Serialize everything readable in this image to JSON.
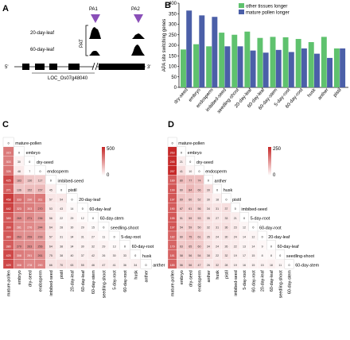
{
  "panels": {
    "a": "A",
    "b": "B",
    "c": "C",
    "d": "D"
  },
  "panel_a": {
    "pa1": "PA1",
    "pa2": "PA2",
    "pat": "PAT",
    "track1": "20-day-leaf",
    "track2": "60-day-leaf",
    "five_prime": "5'",
    "three_prime": "3'",
    "gene": "LOC_Os07g48040",
    "colors": {
      "arrow": "#8a4fb8",
      "track": "#000000"
    }
  },
  "panel_b": {
    "legend_other": "other tissues longer",
    "legend_pollen": "mature pollen longer"
  },
  "panel_c": {
    "scale_max": "500",
    "scale_min": "0"
  },
  "panel_d": {
    "scale_max": "250",
    "scale_min": "0"
  },
  "chart_data": [
    {
      "type": "bar",
      "ylabel": "APA site switching genes",
      "ylim": [
        0,
        400
      ],
      "yticks": [
        0,
        50,
        100,
        150,
        200,
        250,
        300,
        350,
        400
      ],
      "categories": [
        "dry-seed",
        "embryo",
        "endosperm",
        "imbibed-seed",
        "seedling-shoot",
        "20-day-leaf",
        "60-day-leaf",
        "60-day-stem",
        "5-day-root",
        "60-day-root",
        "husk",
        "anther",
        "pistil"
      ],
      "series": [
        {
          "name": "other tissues longer",
          "color": "#5fc26e",
          "values": [
            180,
            205,
            195,
            260,
            250,
            265,
            235,
            240,
            238,
            230,
            215,
            240,
            185
          ]
        },
        {
          "name": "mature pollen longer",
          "color": "#4b5fa8",
          "values": [
            365,
            342,
            335,
            195,
            195,
            175,
            165,
            178,
            168,
            185,
            160,
            140,
            185
          ]
        }
      ]
    },
    {
      "type": "heatmap",
      "labels": [
        "mature-pollen",
        "embryo",
        "dry-seed",
        "endosperm",
        "imbibed-seed",
        "pistil",
        "20-day-leaf",
        "60-day-leaf",
        "60-day-stem",
        "seedling-shoot",
        "5-day-root",
        "60-day-root",
        "husk",
        "anther"
      ],
      "scale": [
        0,
        500
      ],
      "color_max": "#c62828",
      "color_min": "#ffffff",
      "rows": [
        [
          0
        ],
        [
          315,
          0
        ],
        [
          303,
          30,
          0
        ],
        [
          326,
          48,
          7,
          0
        ],
        [
          425,
          183,
          130,
          117,
          0
        ],
        [
          371,
          136,
          152,
          157,
          45,
          0
        ],
        [
          458,
          333,
          290,
          311,
          57,
          54,
          0
        ],
        [
          442,
          323,
          303,
          270,
          53,
          43,
          14,
          0
        ],
        [
          389,
          269,
          271,
          236,
          56,
          22,
          29,
          12,
          0
        ],
        [
          399,
          281,
          276,
          244,
          64,
          28,
          30,
          29,
          15,
          0
        ],
        [
          389,
          263,
          259,
          233,
          57,
          31,
          34,
          31,
          27,
          11,
          0
        ],
        [
          380,
          270,
          263,
          256,
          64,
          38,
          34,
          30,
          32,
          29,
          13,
          0
        ],
        [
          425,
          308,
          291,
          261,
          75,
          38,
          40,
          37,
          42,
          26,
          30,
          33,
          0
        ],
        [
          429,
          308,
          278,
          290,
          66,
          70,
          63,
          55,
          46,
          47,
          41,
          36,
          34,
          0
        ]
      ]
    },
    {
      "type": "heatmap",
      "labels": [
        "mature-pollen",
        "embryo",
        "dry-seed",
        "endosperm",
        "anther",
        "husk",
        "pistil",
        "imbibed-seed",
        "5-day-root",
        "60-day-root",
        "20-day-leaf",
        "60-day-leaf",
        "seedling-shoot",
        "60-day-stem"
      ],
      "scale": [
        0,
        250
      ],
      "color_max": "#c62828",
      "color_min": "#ffffff",
      "rows": [
        [
          0
        ],
        [
          263,
          0
        ],
        [
          245,
          21,
          0
        ],
        [
          257,
          41,
          10,
          0
        ],
        [
          189,
          80,
          77,
          74,
          0
        ],
        [
          199,
          60,
          84,
          66,
          39,
          0
        ],
        [
          197,
          69,
          60,
          52,
          30,
          18,
          0
        ],
        [
          190,
          67,
          61,
          56,
          34,
          31,
          37,
          0
        ],
        [
          195,
          51,
          59,
          53,
          35,
          27,
          33,
          21,
          0
        ],
        [
          197,
          54,
          59,
          50,
          32,
          31,
          36,
          23,
          12,
          0
        ],
        [
          182,
          60,
          75,
          61,
          35,
          24,
          30,
          24,
          14,
          12,
          0
        ],
        [
          179,
          63,
          65,
          60,
          34,
          24,
          26,
          22,
          13,
          14,
          9,
          0
        ],
        [
          181,
          58,
          56,
          54,
          38,
          22,
          32,
          19,
          17,
          15,
          8,
          8,
          0
        ],
        [
          185,
          56,
          56,
          47,
          26,
          32,
          28,
          19,
          16,
          15,
          15,
          18,
          11,
          0
        ]
      ]
    }
  ]
}
